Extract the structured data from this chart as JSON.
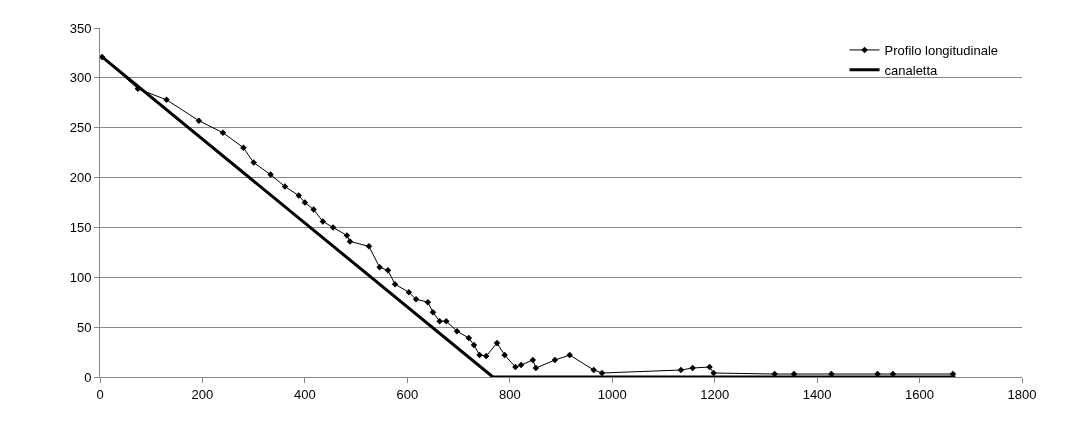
{
  "chart_data": {
    "type": "line",
    "xlim": [
      0,
      1800
    ],
    "xticks": [
      0,
      200,
      400,
      600,
      800,
      1000,
      1200,
      1400,
      1600,
      1800
    ],
    "ylim": [
      0,
      350
    ],
    "yticks": [
      0,
      50,
      100,
      150,
      200,
      250,
      300,
      350
    ],
    "grid": "y",
    "legend": "top right",
    "series": [
      {
        "name": "Profilo longitudinale",
        "color": "#000000",
        "marker": "diamond",
        "line_style": "solid",
        "x": [
          4,
          74,
          130,
          193,
          240,
          280,
          300,
          333,
          361,
          388,
          400,
          417,
          435,
          455,
          482,
          488,
          525,
          546,
          562,
          576,
          603,
          617,
          640,
          650,
          663,
          676,
          697,
          720,
          730,
          741,
          754,
          775,
          790,
          811,
          822,
          845,
          851,
          888,
          917,
          964,
          980,
          1134,
          1157,
          1190,
          1198,
          1317,
          1355,
          1428,
          1518,
          1548,
          1665
        ],
        "values": [
          321,
          289,
          278,
          257,
          245,
          230,
          215,
          203,
          191,
          182,
          175,
          168,
          156,
          150,
          142,
          136,
          131,
          110,
          107,
          93,
          85,
          78,
          75,
          65,
          56,
          56,
          46,
          39,
          32,
          22,
          21,
          34,
          22,
          10,
          12,
          17,
          9,
          17,
          22,
          7,
          4,
          7,
          9,
          10,
          4,
          3,
          3,
          3,
          3,
          3,
          3
        ]
      },
      {
        "name": "canaletta",
        "color": "#000000",
        "marker": "none",
        "line_style": "solid",
        "x": [
          4,
          767,
          1670
        ],
        "values": [
          321,
          0,
          0
        ]
      }
    ]
  }
}
